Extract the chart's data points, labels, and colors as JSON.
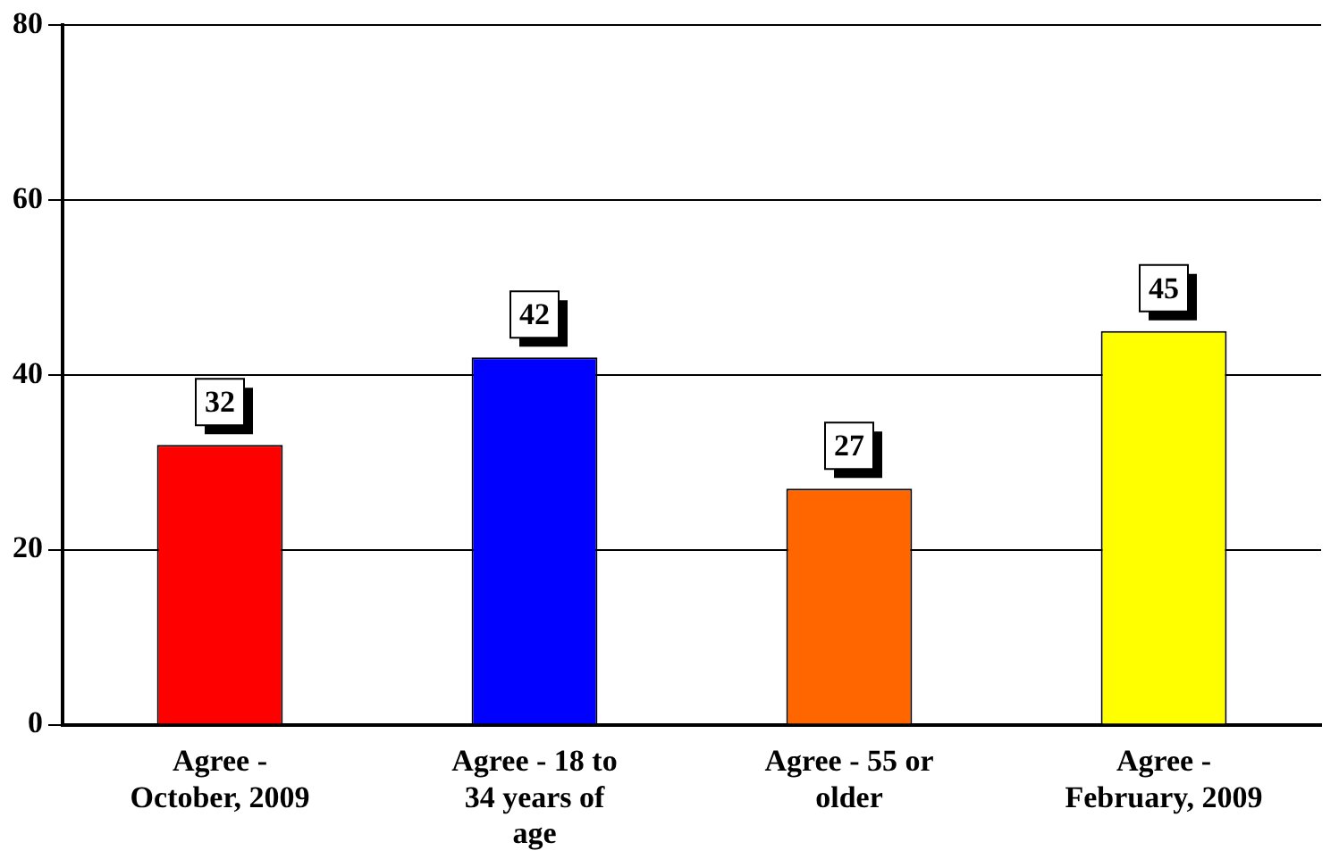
{
  "chart_data": {
    "type": "bar",
    "categories": [
      "Agree - October, 2009",
      "Agree - 18 to 34 years of age",
      "Agree - 55 or older",
      "Agree - February, 2009"
    ],
    "values": [
      32,
      42,
      27,
      45
    ],
    "colors": [
      "#ff0000",
      "#0000ff",
      "#ff6600",
      "#ffff00"
    ],
    "ylim": [
      0,
      80
    ],
    "yticks": [
      0,
      20,
      40,
      60,
      80
    ],
    "grid": "y",
    "data_labels": true
  }
}
